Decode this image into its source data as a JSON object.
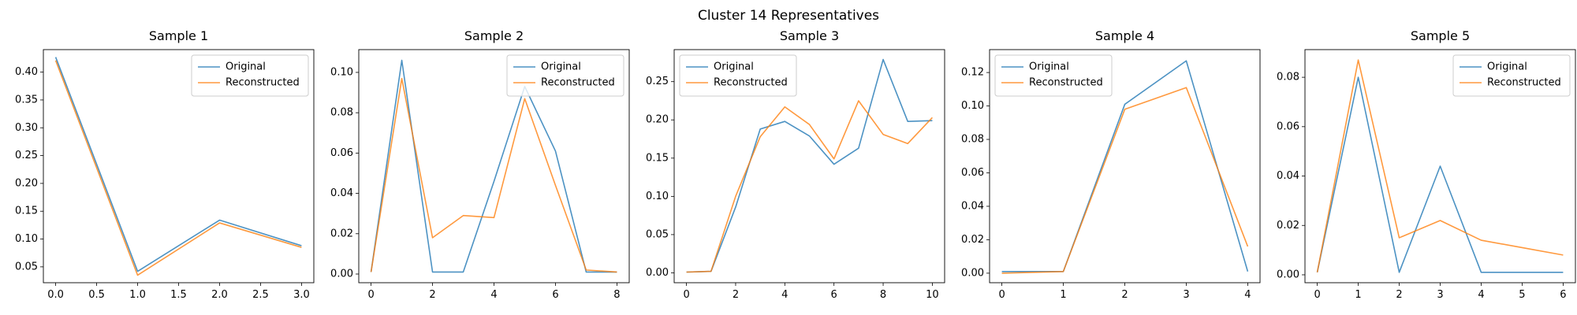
{
  "figure": {
    "title": "Cluster 14 Representatives"
  },
  "colors": {
    "original": "#1f77b4",
    "reconstructed": "#ff7f0e"
  },
  "chart_data": [
    {
      "type": "line",
      "title": "Sample 1",
      "xlabel": "",
      "ylabel": "",
      "xlim": [
        -0.15,
        3.15
      ],
      "ylim": [
        0.0215,
        0.4405
      ],
      "xticks": [
        0.0,
        0.5,
        1.0,
        1.5,
        2.0,
        2.5,
        3.0
      ],
      "xtick_labels": [
        "0.0",
        "0.5",
        "1.0",
        "1.5",
        "2.0",
        "2.5",
        "3.0"
      ],
      "yticks": [
        0.05,
        0.1,
        0.15,
        0.2,
        0.25,
        0.3,
        0.35,
        0.4
      ],
      "ytick_labels": [
        "0.05",
        "0.10",
        "0.15",
        "0.20",
        "0.25",
        "0.30",
        "0.35",
        "0.40"
      ],
      "legend": "upper right",
      "x": [
        0,
        1,
        2,
        3
      ],
      "series": [
        {
          "name": "Original",
          "values": [
            0.427,
            0.042,
            0.134,
            0.088
          ]
        },
        {
          "name": "Reconstructed",
          "values": [
            0.421,
            0.035,
            0.129,
            0.085
          ]
        }
      ]
    },
    {
      "type": "line",
      "title": "Sample 2",
      "xlabel": "",
      "ylabel": "",
      "xlim": [
        -0.4,
        8.4
      ],
      "ylim": [
        -0.0043,
        0.1113
      ],
      "xticks": [
        0,
        2,
        4,
        6,
        8
      ],
      "xtick_labels": [
        "0",
        "2",
        "4",
        "6",
        "8"
      ],
      "yticks": [
        0.0,
        0.02,
        0.04,
        0.06,
        0.08,
        0.1
      ],
      "ytick_labels": [
        "0.00",
        "0.02",
        "0.04",
        "0.06",
        "0.08",
        "0.10"
      ],
      "legend": "upper right",
      "x": [
        0,
        1,
        2,
        3,
        4,
        5,
        6,
        7,
        8
      ],
      "series": [
        {
          "name": "Original",
          "values": [
            0.001,
            0.106,
            0.001,
            0.001,
            0.046,
            0.093,
            0.061,
            0.001,
            0.001
          ]
        },
        {
          "name": "Reconstructed",
          "values": [
            0.001,
            0.097,
            0.018,
            0.029,
            0.028,
            0.087,
            0.044,
            0.002,
            0.001
          ]
        }
      ]
    },
    {
      "type": "line",
      "title": "Sample 3",
      "xlabel": "",
      "ylabel": "",
      "xlim": [
        -0.5,
        10.5
      ],
      "ylim": [
        -0.0129,
        0.2919
      ],
      "xticks": [
        0,
        2,
        4,
        6,
        8,
        10
      ],
      "xtick_labels": [
        "0",
        "2",
        "4",
        "6",
        "8",
        "10"
      ],
      "yticks": [
        0.0,
        0.05,
        0.1,
        0.15,
        0.2,
        0.25
      ],
      "ytick_labels": [
        "0.00",
        "0.05",
        "0.10",
        "0.15",
        "0.20",
        "0.25"
      ],
      "legend": "upper left",
      "x": [
        0,
        1,
        2,
        3,
        4,
        5,
        6,
        7,
        8,
        9,
        10
      ],
      "series": [
        {
          "name": "Original",
          "values": [
            0.001,
            0.002,
            0.086,
            0.188,
            0.198,
            0.179,
            0.142,
            0.163,
            0.279,
            0.198,
            0.199
          ]
        },
        {
          "name": "Reconstructed",
          "values": [
            0.001,
            0.002,
            0.1,
            0.178,
            0.217,
            0.194,
            0.149,
            0.225,
            0.181,
            0.169,
            0.203
          ]
        }
      ]
    },
    {
      "type": "line",
      "title": "Sample 4",
      "xlabel": "",
      "ylabel": "",
      "xlim": [
        -0.2,
        4.2
      ],
      "ylim": [
        -0.0057,
        0.1337
      ],
      "xticks": [
        0,
        1,
        2,
        3,
        4
      ],
      "xtick_labels": [
        "0",
        "1",
        "2",
        "3",
        "4"
      ],
      "yticks": [
        0.0,
        0.02,
        0.04,
        0.06,
        0.08,
        0.1,
        0.12
      ],
      "ytick_labels": [
        "0.00",
        "0.02",
        "0.04",
        "0.06",
        "0.08",
        "0.10",
        "0.12"
      ],
      "legend": "upper left",
      "x": [
        0,
        1,
        2,
        3,
        4
      ],
      "series": [
        {
          "name": "Original",
          "values": [
            0.001,
            0.001,
            0.101,
            0.127,
            0.001
          ]
        },
        {
          "name": "Reconstructed",
          "values": [
            0.0,
            0.001,
            0.098,
            0.111,
            0.016
          ]
        }
      ]
    },
    {
      "type": "line",
      "title": "Sample 5",
      "xlabel": "",
      "ylabel": "",
      "xlim": [
        -0.3,
        6.3
      ],
      "ylim": [
        -0.0032,
        0.0912
      ],
      "xticks": [
        0,
        1,
        2,
        3,
        4,
        5,
        6
      ],
      "xtick_labels": [
        "0",
        "1",
        "2",
        "3",
        "4",
        "5",
        "6"
      ],
      "yticks": [
        0.0,
        0.02,
        0.04,
        0.06,
        0.08
      ],
      "ytick_labels": [
        "0.00",
        "0.02",
        "0.04",
        "0.06",
        "0.08"
      ],
      "legend": "upper right",
      "x": [
        0,
        1,
        2,
        3,
        4,
        5,
        6
      ],
      "series": [
        {
          "name": "Original",
          "values": [
            0.001,
            0.08,
            0.001,
            0.044,
            0.001,
            0.001,
            0.001
          ]
        },
        {
          "name": "Reconstructed",
          "values": [
            0.001,
            0.087,
            0.015,
            0.022,
            0.014,
            0.011,
            0.008
          ]
        }
      ]
    }
  ]
}
